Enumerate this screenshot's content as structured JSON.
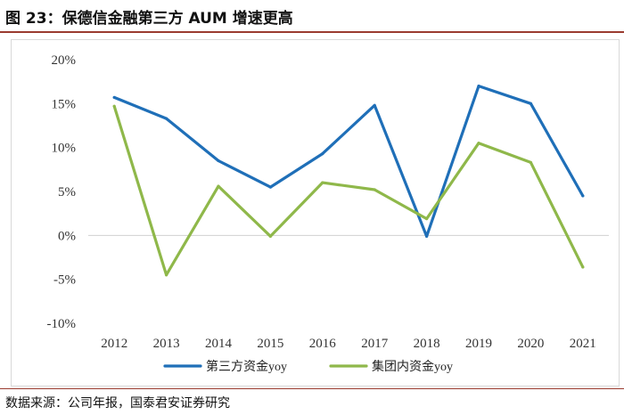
{
  "figure": {
    "title": "图 23：保德信金融第三方 AUM 增速更高",
    "source": "数据来源：公司年报，国泰君安证券研究"
  },
  "chart_data": {
    "type": "line",
    "title": "",
    "xlabel": "",
    "ylabel": "",
    "categories": [
      "2012",
      "2013",
      "2014",
      "2015",
      "2016",
      "2017",
      "2018",
      "2019",
      "2020",
      "2021"
    ],
    "series": [
      {
        "name": "第三方资金yoy",
        "color": "#1f6fb8",
        "values": [
          15.7,
          13.3,
          8.5,
          5.5,
          9.3,
          14.8,
          -0.1,
          17.0,
          15.0,
          4.5
        ]
      },
      {
        "name": "集团内资金yoy",
        "color": "#8fb84a",
        "values": [
          14.7,
          -4.5,
          5.6,
          -0.1,
          6.0,
          5.2,
          1.9,
          10.5,
          8.3,
          -3.6
        ]
      }
    ],
    "ylim": [
      -10,
      20
    ],
    "yticks": [
      20,
      15,
      10,
      5,
      0,
      -5,
      -10
    ],
    "ytick_labels": [
      "20%",
      "15%",
      "10%",
      "5%",
      "0%",
      "-5%",
      "-10%"
    ],
    "zero_line": true,
    "grid": false,
    "legend_position": "bottom-center"
  }
}
